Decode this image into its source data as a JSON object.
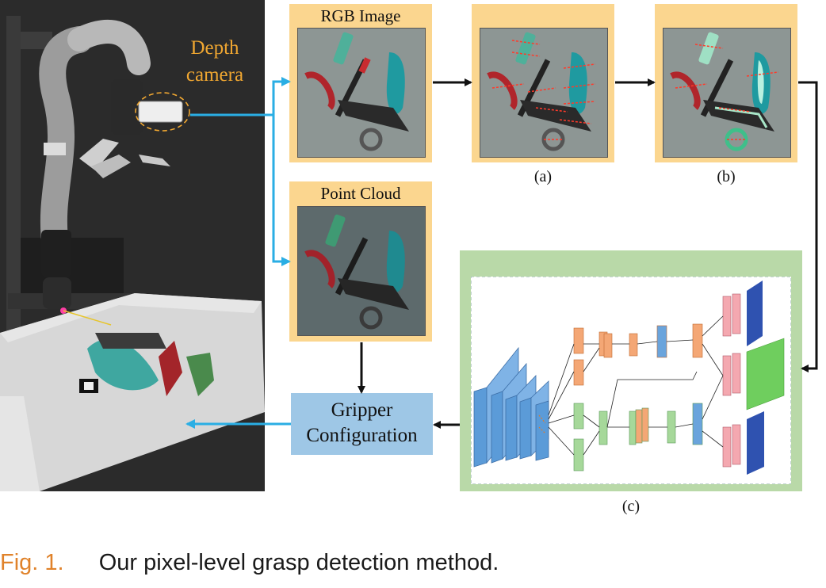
{
  "camera_label_line1": "Depth",
  "camera_label_line2": "camera",
  "rgb_title": "RGB Image",
  "pointcloud_title": "Point Cloud",
  "label_a": "(a)",
  "label_b": "(b)",
  "label_c": "(c)",
  "gripper_line1": "Gripper",
  "gripper_line2": "Configuration",
  "caption_fig": "Fig. 1.",
  "caption_text": "Our pixel-level grasp detection method.",
  "colors": {
    "frame_orange": "#fbd68f",
    "network_green": "#b9d9a8",
    "arrow_blue": "#2aaee4",
    "gripper_box": "#9ec7e6",
    "camera_label": "#f0a731",
    "caption_fig": "#e0822a"
  }
}
